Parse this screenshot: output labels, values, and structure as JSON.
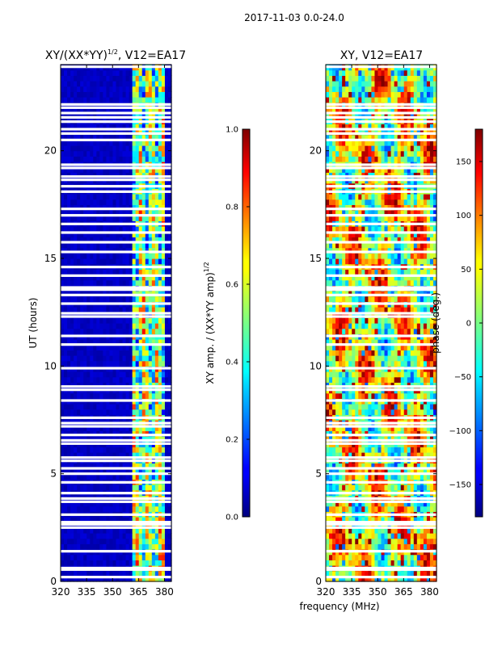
{
  "chart_data": [
    {
      "type": "heatmap",
      "suptitle": "2017-11-03 0.0-24.0",
      "title": "XY/(XX*YY)",
      "title_sup": "1/2",
      "title_suffix": ", V12=EA17",
      "xlabel": "frequency (MHz)",
      "ylabel": "UT (hours)",
      "xlim": [
        320,
        384
      ],
      "ylim": [
        0,
        24
      ],
      "xticks": [
        320,
        335,
        350,
        365,
        380
      ],
      "yticks": [
        0,
        5,
        10,
        15,
        20
      ],
      "colorbar": {
        "label": "XY amp. / (XX*YY amp)",
        "label_sup": "1/2",
        "range": [
          0.0,
          1.0
        ],
        "ticks": [
          "0.0",
          "0.2",
          "0.4",
          "0.6",
          "0.8",
          "1.0"
        ],
        "colormap": "jet"
      },
      "description_values": {
        "background_level": 0.05,
        "active_band_mhz": [
          362,
          381
        ],
        "active_level": 0.55
      }
    },
    {
      "type": "heatmap",
      "title": "XY, V12=EA17",
      "xlabel": "frequency (MHz)",
      "ylabel": "",
      "xlim": [
        320,
        384
      ],
      "ylim": [
        0,
        24
      ],
      "xticks": [
        320,
        335,
        350,
        365,
        380
      ],
      "yticks": [
        0,
        5,
        10,
        15,
        20
      ],
      "colorbar": {
        "label": "phase (deg.)",
        "range": [
          -180,
          180
        ],
        "ticks": [
          "−150",
          "−100",
          "−50",
          "0",
          "50",
          "100",
          "150"
        ],
        "colormap": "jet"
      }
    }
  ],
  "gap_hours": [
    0.2,
    0.55,
    0.62,
    1.4,
    2.5,
    2.65,
    2.75,
    3.1,
    3.7,
    3.85,
    4.1,
    4.6,
    5.0,
    5.25,
    5.6,
    5.75,
    6.4,
    6.55,
    6.8,
    7.2,
    7.35,
    7.6,
    8.4,
    8.9,
    9.05,
    9.9,
    11.0,
    11.4,
    12.3,
    12.45,
    12.9,
    13.3,
    13.55,
    13.65,
    14.2,
    14.6,
    15.3,
    15.75,
    16.2,
    16.6,
    17.0,
    17.3,
    18.1,
    18.35,
    18.65,
    18.8,
    19.2,
    19.35,
    20.5,
    20.8,
    21.0,
    21.35,
    21.55,
    21.75,
    22.0,
    22.15,
    23.9
  ]
}
